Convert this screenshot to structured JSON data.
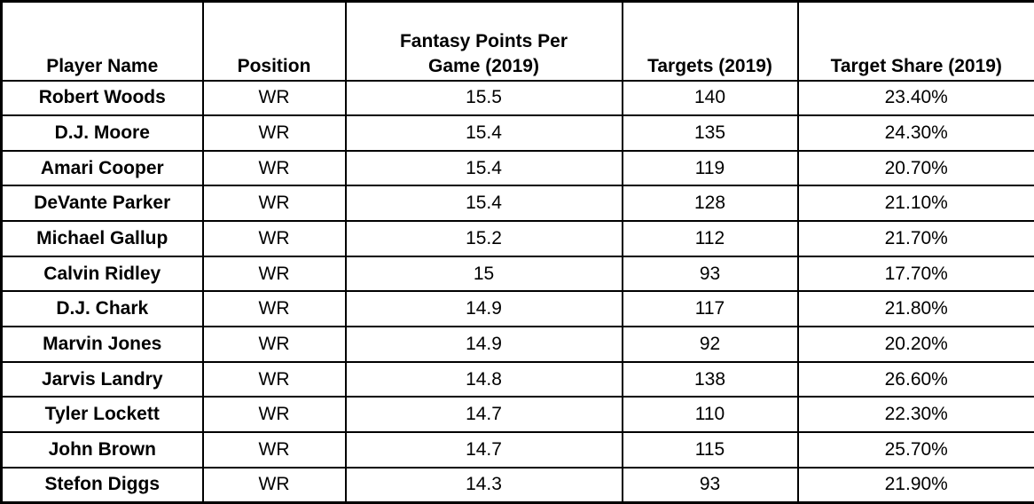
{
  "table": {
    "columns": [
      {
        "label": "Player Name",
        "lines": [
          "Player Name"
        ]
      },
      {
        "label": "Position",
        "lines": [
          "Position"
        ]
      },
      {
        "label": "Fantasy Points Per Game (2019)",
        "lines": [
          "Fantasy Points Per",
          "Game (2019)"
        ]
      },
      {
        "label": "Targets (2019)",
        "lines": [
          "Targets (2019)"
        ]
      },
      {
        "label": "Target Share (2019)",
        "lines": [
          "Target Share (2019)"
        ]
      }
    ],
    "rows": [
      [
        "Robert Woods",
        "WR",
        "15.5",
        "140",
        "23.40%"
      ],
      [
        "D.J. Moore",
        "WR",
        "15.4",
        "135",
        "24.30%"
      ],
      [
        "Amari Cooper",
        "WR",
        "15.4",
        "119",
        "20.70%"
      ],
      [
        "DeVante Parker",
        "WR",
        "15.4",
        "128",
        "21.10%"
      ],
      [
        "Michael Gallup",
        "WR",
        "15.2",
        "112",
        "21.70%"
      ],
      [
        "Calvin Ridley",
        "WR",
        "15",
        "93",
        "17.70%"
      ],
      [
        "D.J. Chark",
        "WR",
        "14.9",
        "117",
        "21.80%"
      ],
      [
        "Marvin Jones",
        "WR",
        "14.9",
        "92",
        "20.20%"
      ],
      [
        "Jarvis Landry",
        "WR",
        "14.8",
        "138",
        "26.60%"
      ],
      [
        "Tyler Lockett",
        "WR",
        "14.7",
        "110",
        "22.30%"
      ],
      [
        "John Brown",
        "WR",
        "14.7",
        "115",
        "25.70%"
      ],
      [
        "Stefon Diggs",
        "WR",
        "14.3",
        "93",
        "21.90%"
      ]
    ]
  },
  "colors": {
    "border": "#000000",
    "text": "#000000",
    "background": "#ffffff"
  }
}
